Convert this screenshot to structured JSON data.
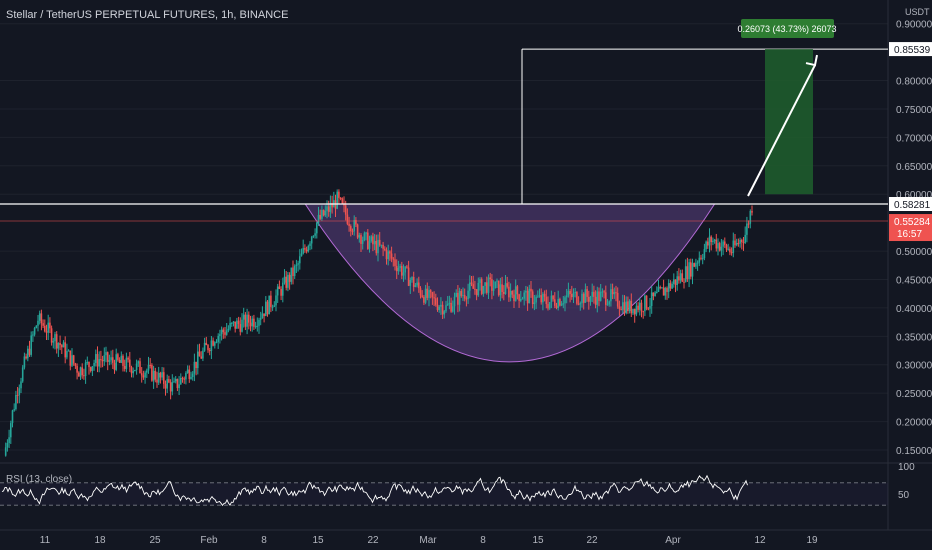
{
  "header": {
    "title": "Stellar / TetherUS PERPETUAL FUTURES, 1h, BINANCE",
    "currency": "USDT"
  },
  "colors": {
    "background": "#131722",
    "up": "#26a69a",
    "down": "#ef5350",
    "cup_fill": "#5b3f82",
    "target_box": "#1e5b2c",
    "label_green": "#2e7d32",
    "price_red": "#ef5350",
    "rsi_line": "#ffffff"
  },
  "chart_data": [
    {
      "type": "candlestick",
      "pair": "XLMUSDT",
      "timeframe": "1h",
      "x_ticks": [
        "11",
        "18",
        "25",
        "Feb",
        "8",
        "15",
        "22",
        "Mar",
        "8",
        "15",
        "22",
        "Apr",
        "12",
        "19"
      ],
      "y_ticks": [
        "0.90000",
        "0.80000",
        "0.75000",
        "0.70000",
        "0.65000",
        "0.60000",
        "0.50000",
        "0.45000",
        "0.40000",
        "0.35000",
        "0.30000",
        "0.25000",
        "0.20000",
        "0.15000"
      ],
      "ylim": [
        0.11,
        0.92
      ],
      "resistance_level": "0.58281",
      "last_price": "0.55284",
      "countdown": "16:57",
      "target_price": "0.85539",
      "target_label": "0.26073 (43.73%) 26073",
      "cup_bottom": 0.305,
      "price_path": [
        [
          0,
          0.14
        ],
        [
          2,
          0.26
        ],
        [
          5,
          0.38
        ],
        [
          8,
          0.34
        ],
        [
          11,
          0.29
        ],
        [
          14,
          0.31
        ],
        [
          18,
          0.3
        ],
        [
          21,
          0.29
        ],
        [
          25,
          0.26
        ],
        [
          28,
          0.3
        ],
        [
          31,
          0.35
        ],
        [
          34,
          0.37
        ],
        [
          37,
          0.38
        ],
        [
          40,
          0.42
        ],
        [
          43,
          0.47
        ],
        [
          46,
          0.55
        ],
        [
          49,
          0.59
        ],
        [
          51,
          0.55
        ],
        [
          53,
          0.52
        ],
        [
          56,
          0.5
        ],
        [
          59,
          0.46
        ],
        [
          62,
          0.42
        ],
        [
          65,
          0.4
        ],
        [
          68,
          0.43
        ],
        [
          71,
          0.44
        ],
        [
          74,
          0.43
        ],
        [
          77,
          0.42
        ],
        [
          80,
          0.41
        ],
        [
          83,
          0.42
        ],
        [
          86,
          0.42
        ],
        [
          89,
          0.42
        ],
        [
          92,
          0.4
        ],
        [
          95,
          0.41
        ],
        [
          98,
          0.44
        ],
        [
          101,
          0.47
        ],
        [
          104,
          0.52
        ],
        [
          107,
          0.5
        ],
        [
          109,
          0.53
        ],
        [
          110,
          0.58
        ]
      ]
    },
    {
      "type": "line",
      "name": "RSI (13, close)",
      "y_ticks": [
        "100",
        "50"
      ],
      "ylim": [
        0,
        100
      ],
      "bands": [
        30,
        70
      ]
    }
  ]
}
